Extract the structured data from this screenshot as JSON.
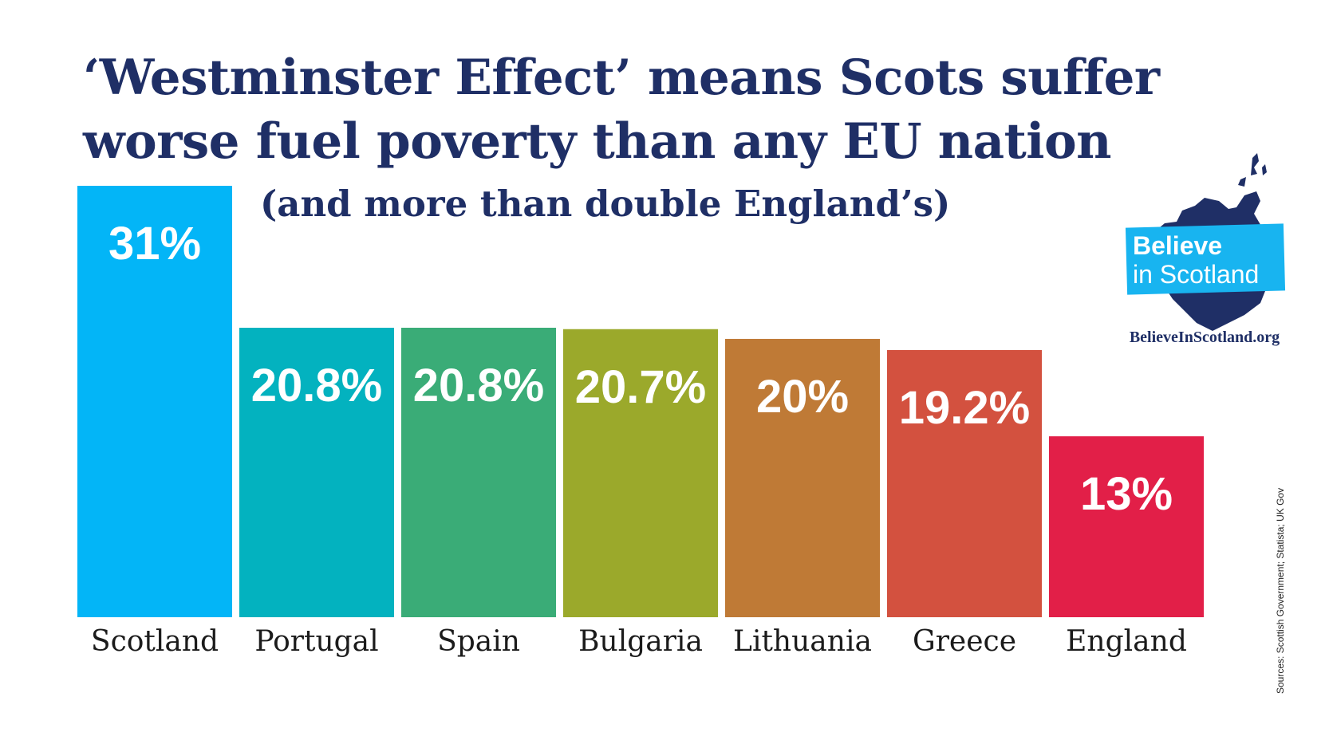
{
  "chart_data": {
    "type": "bar",
    "title": "‘Westminster Effect’ means Scots suffer worse fuel poverty than any EU nation",
    "subtitle": "(and more than double England’s)",
    "categories": [
      "Scotland",
      "Portugal",
      "Spain",
      "Bulgaria",
      "Lithuania",
      "Greece",
      "England"
    ],
    "values": [
      31,
      20.8,
      20.8,
      20.7,
      20,
      19.2,
      13
    ],
    "value_labels": [
      "31%",
      "20.8%",
      "20.8%",
      "20.7%",
      "20%",
      "19.2%",
      "13%"
    ],
    "colors": [
      "#03b5f7",
      "#03b2bf",
      "#3aac77",
      "#9ba92b",
      "#bf7a36",
      "#d3513f",
      "#e21f48"
    ],
    "ylim": [
      0,
      31
    ],
    "xlabel": "",
    "ylabel": "",
    "grid": false
  },
  "branding": {
    "line1": "Believe",
    "line2": "in Scotland",
    "url": "BelieveInScotland.org",
    "accent": "#18b4f0",
    "navy": "#1f2f66"
  },
  "sources": "Sources: Scottish Government; Statista; UK Gov"
}
